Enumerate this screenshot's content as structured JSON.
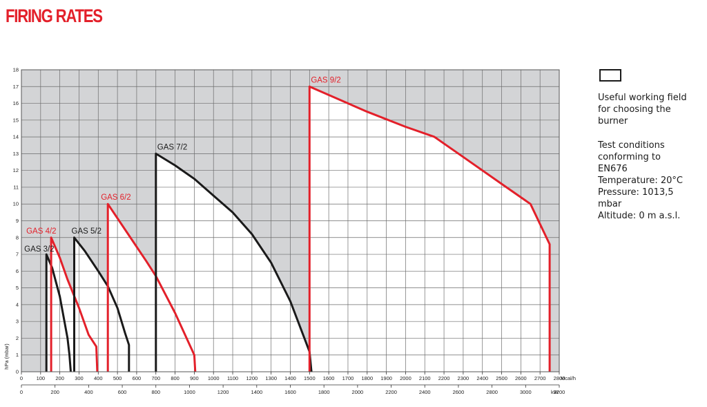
{
  "title": "FIRING RATES",
  "legend": {
    "field_line1": "Useful working field",
    "field_line2": "for choosing the",
    "field_line3": "burner",
    "test_line1": "Test conditions",
    "test_line2": "conforming to",
    "test_line3": "EN676",
    "temperature": "Temperature: 20°C",
    "pressure_line1": "Pressure: 1013,5",
    "pressure_line2": "mbar",
    "altitude": "Altitude: 0 m a.s.l."
  },
  "colors": {
    "red": "#e3202a",
    "black": "#1a1a1a",
    "outside_area": "#d3d4d6",
    "grid": "#6b6b6b"
  },
  "chart_data": {
    "type": "area",
    "ylabel": "hPa (mbar)",
    "x_unit_top": "Mcal/h",
    "x_unit_bottom": "kW",
    "ylim": [
      0,
      18
    ],
    "xlim_mcal": [
      0,
      2800
    ],
    "xlim_kw": [
      0,
      3200
    ],
    "y_ticks": [
      0,
      1,
      2,
      3,
      4,
      5,
      6,
      7,
      8,
      9,
      10,
      11,
      12,
      13,
      14,
      15,
      16,
      17,
      18
    ],
    "x_ticks_mcal": [
      0,
      100,
      200,
      300,
      400,
      500,
      600,
      700,
      800,
      900,
      1000,
      1100,
      1200,
      1300,
      1400,
      1500,
      1600,
      1700,
      1800,
      1900,
      2000,
      2100,
      2200,
      2300,
      2400,
      2500,
      2600,
      2700,
      2800
    ],
    "x_ticks_kw": [
      0,
      200,
      400,
      600,
      800,
      1000,
      1200,
      1400,
      1600,
      1800,
      2000,
      2200,
      2400,
      2600,
      2800,
      3000,
      3200
    ],
    "grid": true,
    "series": [
      {
        "name": "GAS 3/2",
        "color": "black",
        "points": [
          [
            130,
            0
          ],
          [
            130,
            7
          ],
          [
            160,
            6.2
          ],
          [
            200,
            4.5
          ],
          [
            240,
            2
          ],
          [
            250,
            1
          ],
          [
            257,
            0
          ]
        ]
      },
      {
        "name": "GAS 4/2",
        "color": "red",
        "points": [
          [
            155,
            0
          ],
          [
            155,
            8
          ],
          [
            200,
            6.8
          ],
          [
            240,
            5.5
          ],
          [
            300,
            3.8
          ],
          [
            350,
            2.2
          ],
          [
            390,
            1.5
          ],
          [
            395,
            0
          ]
        ]
      },
      {
        "name": "GAS 5/2",
        "color": "black",
        "points": [
          [
            275,
            0
          ],
          [
            275,
            8
          ],
          [
            330,
            7.2
          ],
          [
            400,
            6
          ],
          [
            450,
            5.1
          ],
          [
            500,
            3.8
          ],
          [
            540,
            2.3
          ],
          [
            560,
            1.6
          ],
          [
            560,
            0
          ]
        ]
      },
      {
        "name": "GAS 6/2",
        "color": "red",
        "points": [
          [
            450,
            0
          ],
          [
            450,
            10
          ],
          [
            550,
            8.3
          ],
          [
            650,
            6.6
          ],
          [
            700,
            5.7
          ],
          [
            800,
            3.5
          ],
          [
            900,
            1
          ],
          [
            905,
            0
          ]
        ]
      },
      {
        "name": "GAS 7/2",
        "color": "black",
        "points": [
          [
            700,
            0
          ],
          [
            700,
            13
          ],
          [
            800,
            12.3
          ],
          [
            900,
            11.5
          ],
          [
            1000,
            10.5
          ],
          [
            1100,
            9.5
          ],
          [
            1200,
            8.2
          ],
          [
            1300,
            6.5
          ],
          [
            1400,
            4.2
          ],
          [
            1500,
            1.2
          ],
          [
            1510,
            0
          ]
        ]
      },
      {
        "name": "GAS 9/2",
        "color": "red",
        "points": [
          [
            1500,
            0
          ],
          [
            1500,
            17
          ],
          [
            1800,
            15.5
          ],
          [
            2000,
            14.6
          ],
          [
            2150,
            14
          ],
          [
            2300,
            12.8
          ],
          [
            2500,
            11.2
          ],
          [
            2650,
            10
          ],
          [
            2750,
            7.6
          ],
          [
            2750,
            0
          ]
        ]
      }
    ]
  }
}
